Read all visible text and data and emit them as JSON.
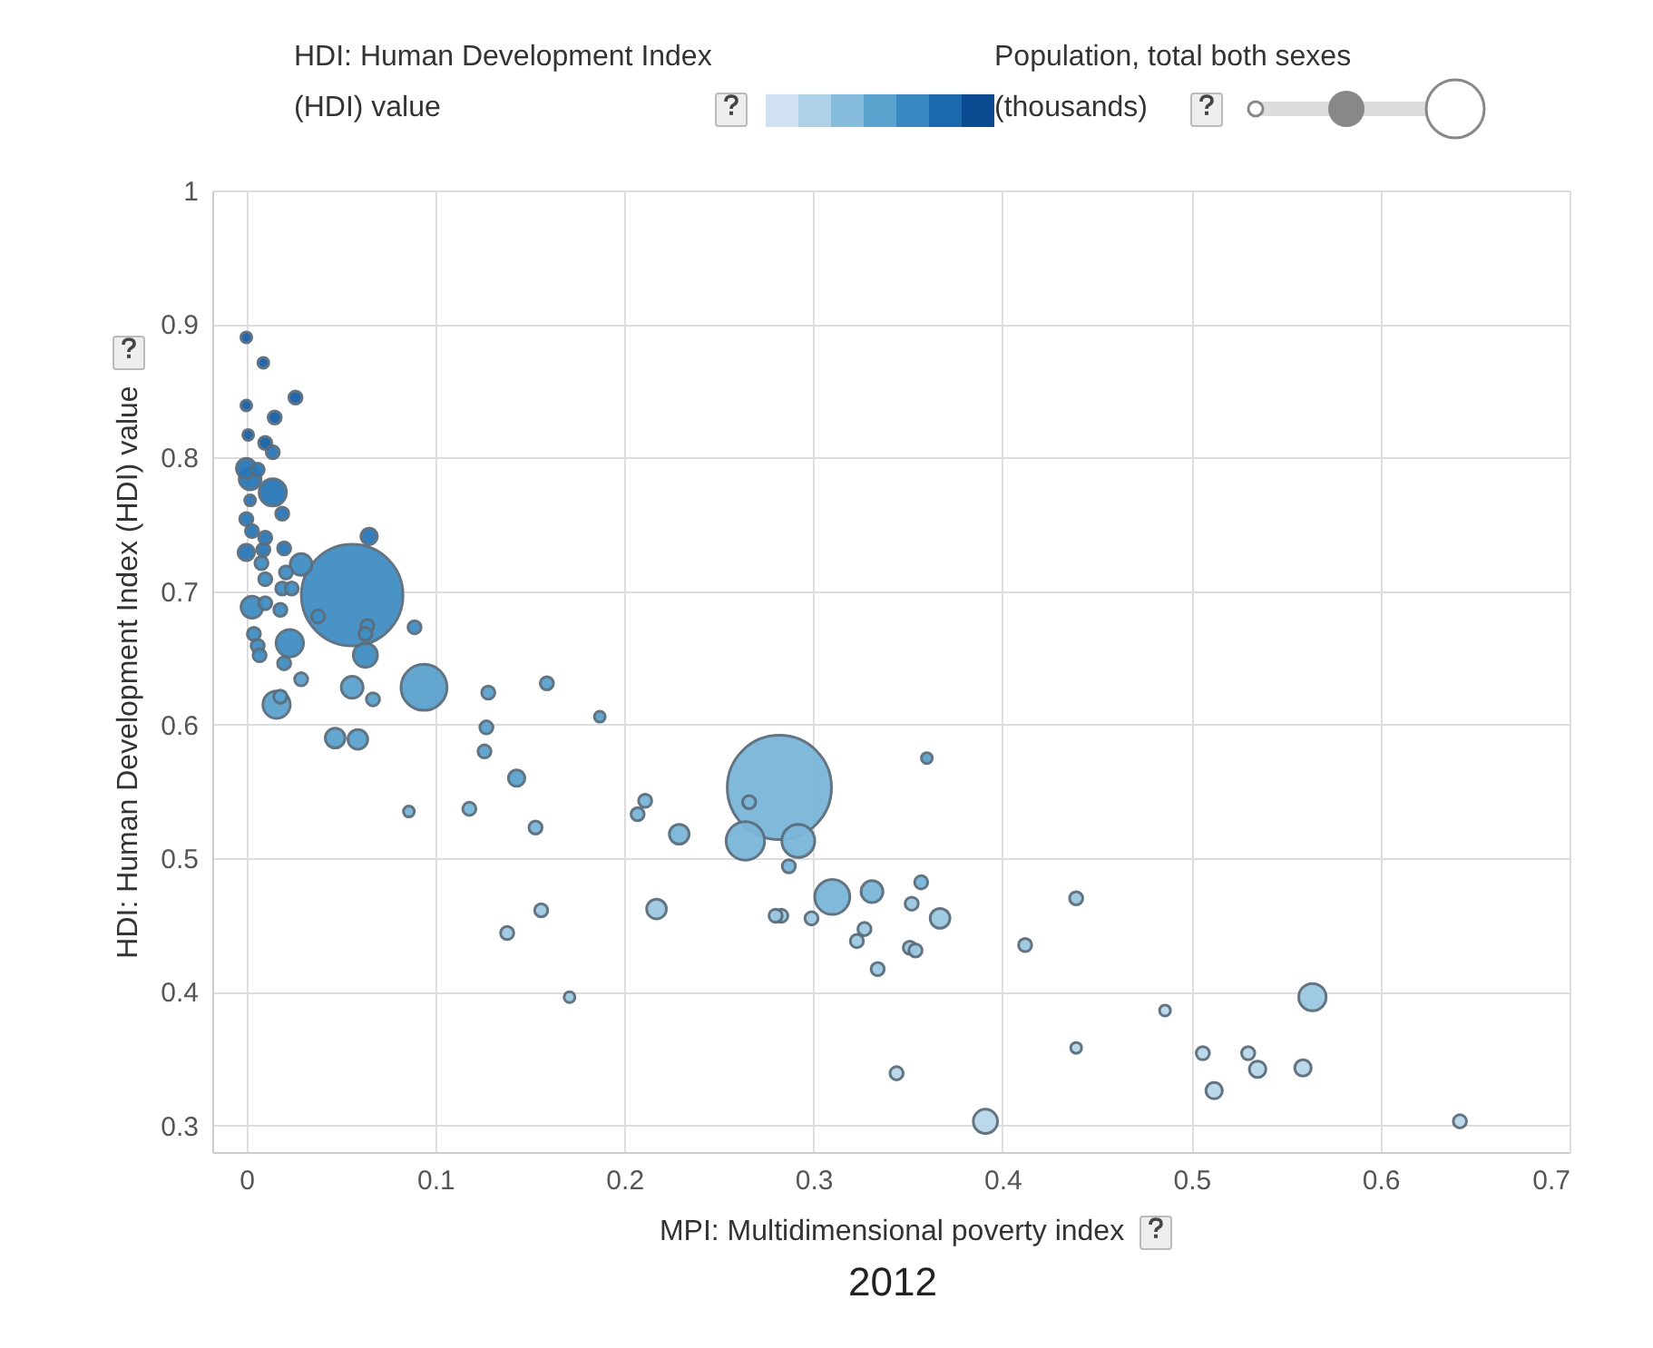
{
  "chart_data": {
    "type": "bubble",
    "xlabel": "MPI: Multidimensional poverty index",
    "ylabel": "HDI: Human Development Index (HDI) value",
    "clabel": "HDI: Human Development Index (HDI) value",
    "legend_title": "Population, total both sexes (thousands)",
    "grid": true,
    "annotations": [
      "2012"
    ],
    "xlim": [
      -0.018,
      0.7
    ],
    "xticks": [
      0,
      0.1,
      0.2,
      0.3,
      0.4,
      0.5,
      0.6,
      0.7
    ],
    "ylim": [
      0.28,
      1
    ],
    "yticks": [
      0.3,
      0.4,
      0.5,
      0.6,
      0.7,
      0.8,
      0.9,
      1
    ],
    "x": [
      0.0,
      0.009,
      0.026,
      0.0,
      0.015,
      0.001,
      0.01,
      0.014,
      0.0,
      0.006,
      0.002,
      0.014,
      0.002,
      0.019,
      0.0,
      0.003,
      0.01,
      0.065,
      0.0,
      0.009,
      0.02,
      0.029,
      0.008,
      0.021,
      0.01,
      0.019,
      0.024,
      0.056,
      0.003,
      0.01,
      0.018,
      0.038,
      0.089,
      0.064,
      0.063,
      0.004,
      0.006,
      0.023,
      0.007,
      0.063,
      0.02,
      0.029,
      0.094,
      0.056,
      0.067,
      0.016,
      0.018,
      0.128,
      0.159,
      0.127,
      0.187,
      0.047,
      0.059,
      0.126,
      0.143,
      0.086,
      0.118,
      0.153,
      0.156,
      0.138,
      0.171,
      0.211,
      0.207,
      0.229,
      0.282,
      0.266,
      0.264,
      0.292,
      0.287,
      0.36,
      0.217,
      0.283,
      0.28,
      0.299,
      0.31,
      0.331,
      0.357,
      0.352,
      0.367,
      0.327,
      0.323,
      0.351,
      0.354,
      0.334,
      0.412,
      0.439,
      0.344,
      0.391,
      0.439,
      0.486,
      0.506,
      0.53,
      0.535,
      0.559,
      0.512,
      0.564,
      0.642
    ],
    "values": [
      0.89,
      0.871,
      0.845,
      0.839,
      0.83,
      0.817,
      0.811,
      0.804,
      0.792,
      0.791,
      0.784,
      0.774,
      0.768,
      0.758,
      0.754,
      0.745,
      0.74,
      0.741,
      0.729,
      0.731,
      0.732,
      0.72,
      0.721,
      0.714,
      0.709,
      0.702,
      0.702,
      0.697,
      0.688,
      0.691,
      0.686,
      0.681,
      0.673,
      0.674,
      0.668,
      0.668,
      0.659,
      0.661,
      0.652,
      0.652,
      0.646,
      0.634,
      0.628,
      0.628,
      0.619,
      0.615,
      0.621,
      0.624,
      0.631,
      0.598,
      0.606,
      0.59,
      0.589,
      0.58,
      0.56,
      0.535,
      0.537,
      0.523,
      0.461,
      0.444,
      0.396,
      0.543,
      0.533,
      0.518,
      0.553,
      0.542,
      0.513,
      0.513,
      0.494,
      0.575,
      0.462,
      0.457,
      0.457,
      0.455,
      0.471,
      0.475,
      0.482,
      0.466,
      0.455,
      0.447,
      0.438,
      0.433,
      0.431,
      0.417,
      0.435,
      0.47,
      0.339,
      0.303,
      0.358,
      0.386,
      0.354,
      0.354,
      0.342,
      0.343,
      0.326,
      0.396,
      0.303
    ],
    "sizes": [
      0.011,
      0.011,
      0.016,
      0.011,
      0.016,
      0.011,
      0.016,
      0.016,
      0.036,
      0.016,
      0.044,
      0.069,
      0.011,
      0.016,
      0.016,
      0.016,
      0.016,
      0.025,
      0.025,
      0.016,
      0.016,
      0.044,
      0.016,
      0.016,
      0.016,
      0.016,
      0.016,
      0.95,
      0.044,
      0.016,
      0.016,
      0.016,
      0.016,
      0.016,
      0.016,
      0.016,
      0.016,
      0.069,
      0.016,
      0.054,
      0.016,
      0.016,
      0.195,
      0.044,
      0.016,
      0.069,
      0.016,
      0.016,
      0.016,
      0.016,
      0.011,
      0.036,
      0.036,
      0.016,
      0.025,
      0.011,
      0.016,
      0.016,
      0.016,
      0.016,
      0.011,
      0.016,
      0.016,
      0.036,
      1,
      0.016,
      0.136,
      0.1,
      0.016,
      0.011,
      0.036,
      0.016,
      0.016,
      0.016,
      0.113,
      0.044,
      0.016,
      0.016,
      0.036,
      0.016,
      0.016,
      0.016,
      0.016,
      0.016,
      0.016,
      0.016,
      0.016,
      0.054,
      0.011,
      0.011,
      0.016,
      0.016,
      0.025,
      0.025,
      0.025,
      0.069,
      0.016
    ]
  }
}
